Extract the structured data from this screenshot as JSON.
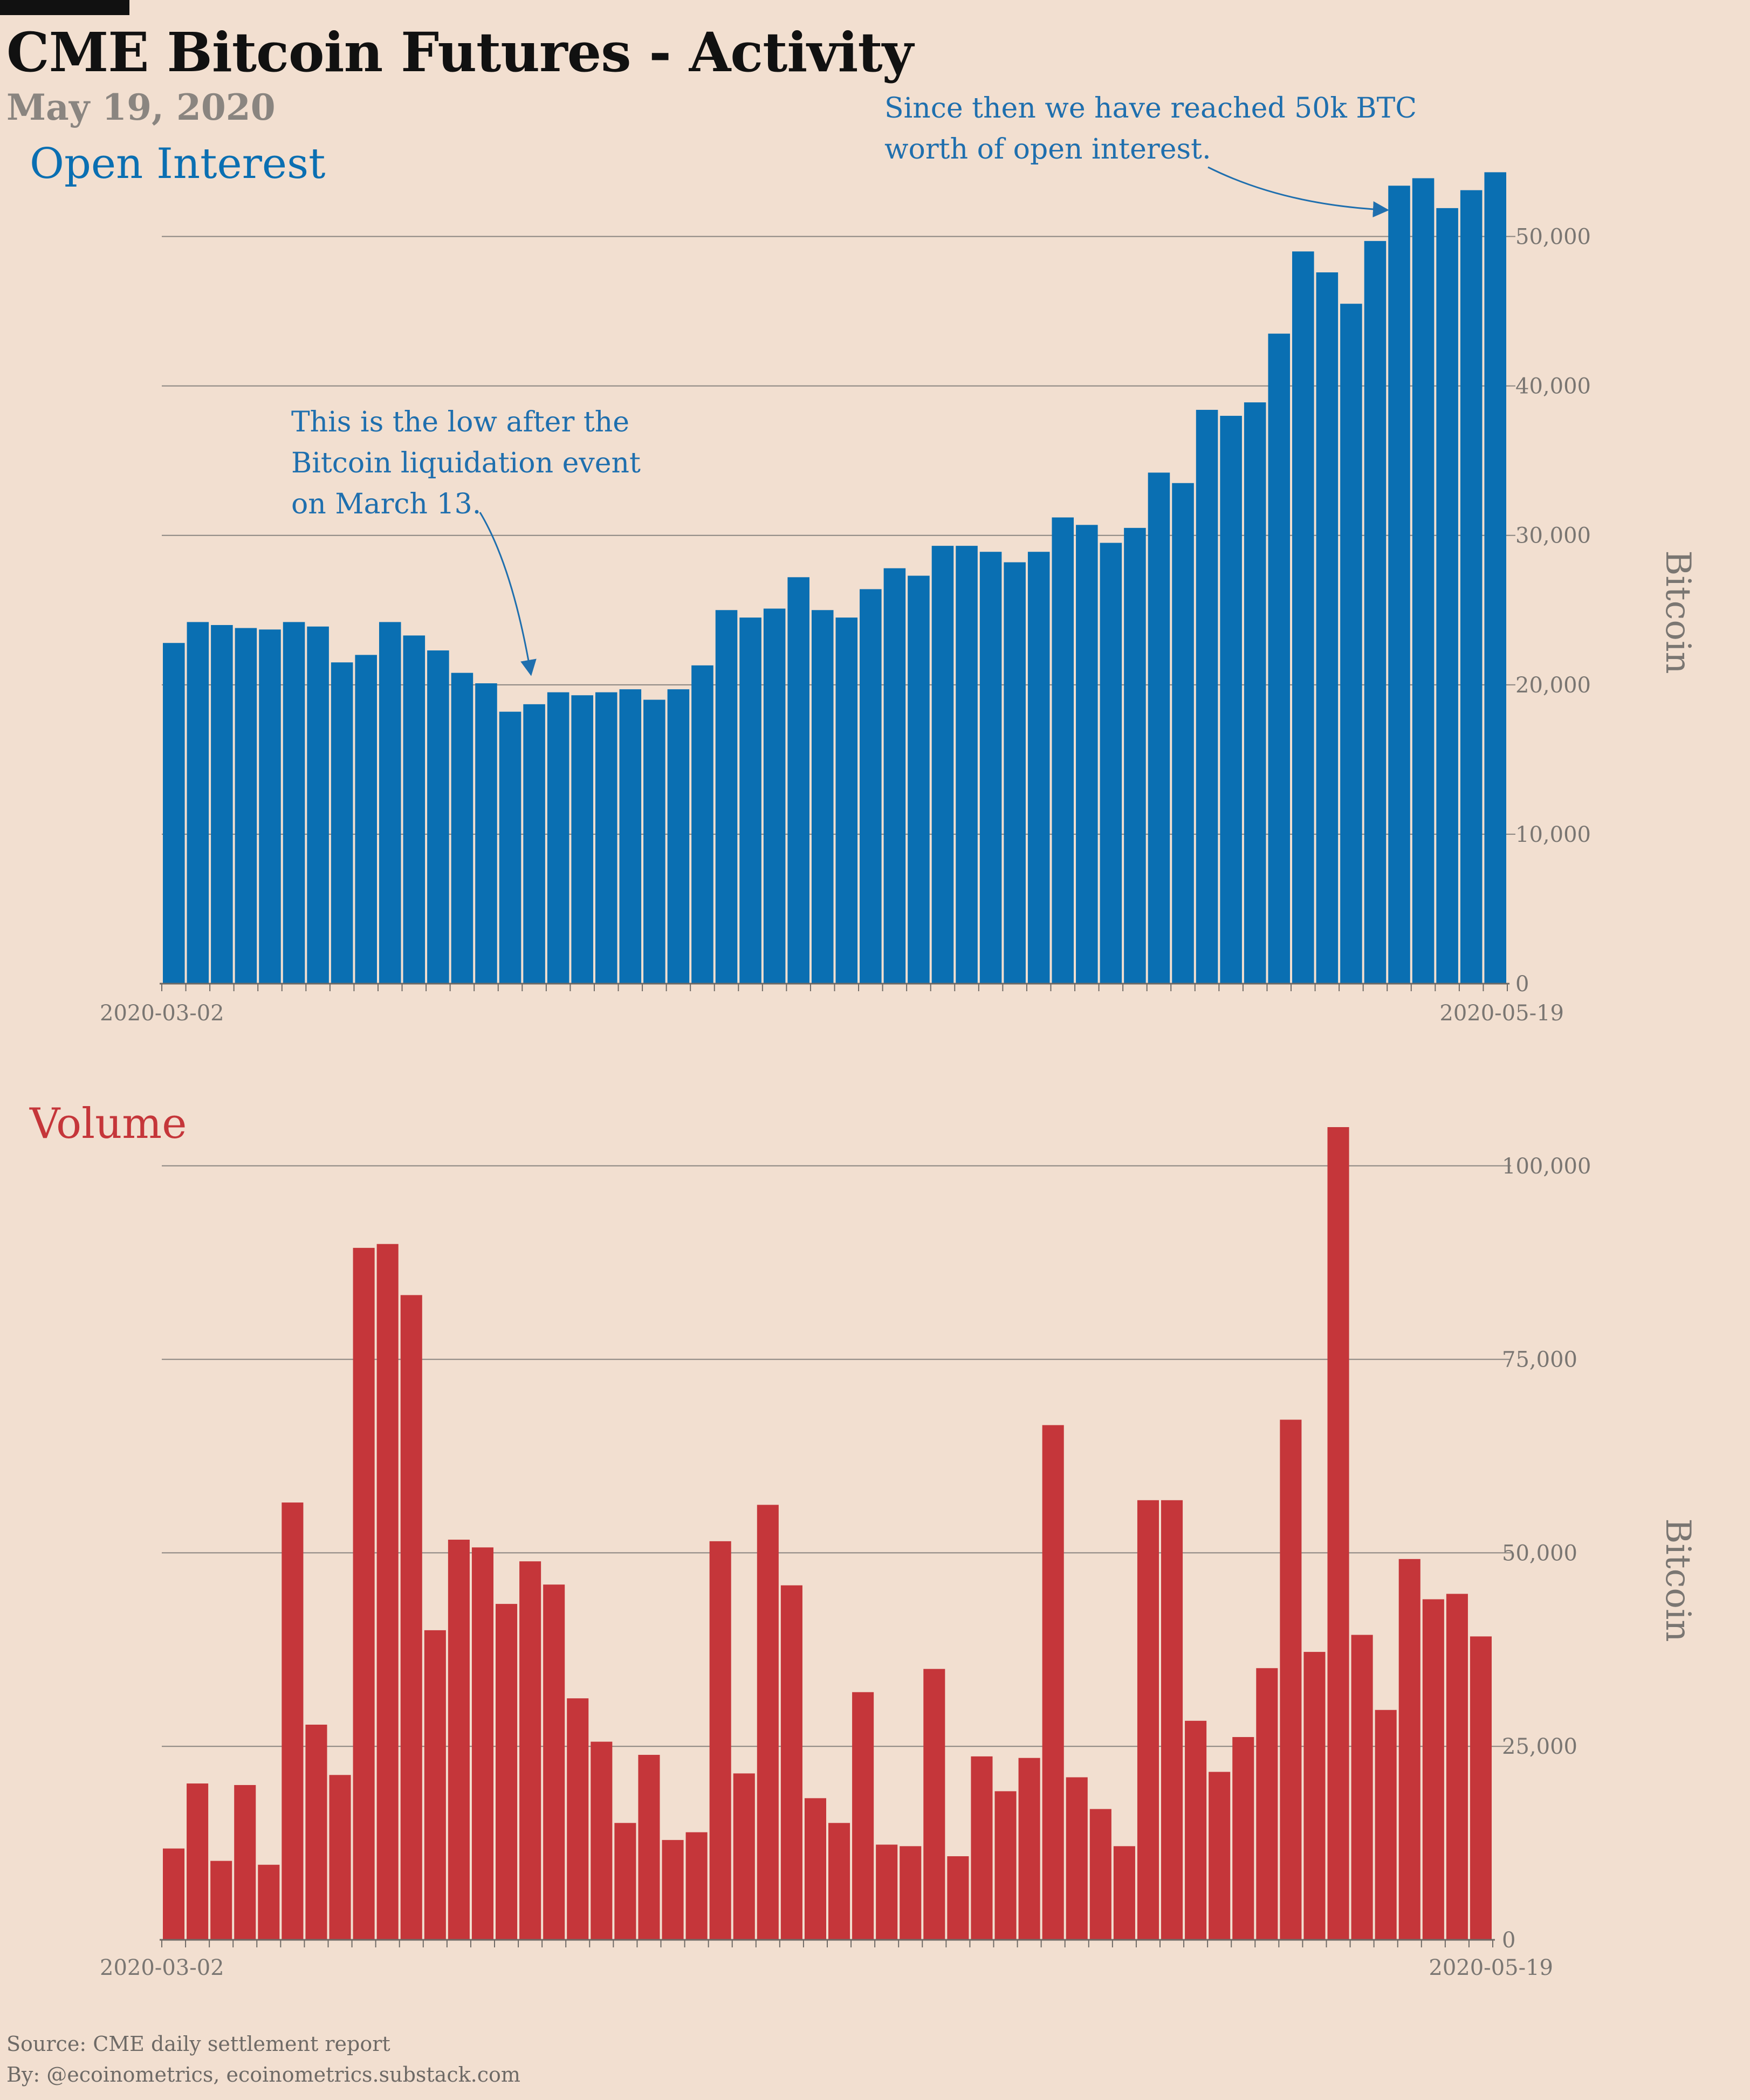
{
  "header": {
    "title": "CME Bitcoin Futures - Activity",
    "date": "May 19, 2020"
  },
  "footer": {
    "source": "Source: CME daily settlement report",
    "by": "By: @ecoinometrics, ecoinometrics.substack.com"
  },
  "colors": {
    "background": "#f2dfd0",
    "open_interest": "#0a6fb2",
    "volume": "#c5363a",
    "annotation": "#1f6fae",
    "grid": "#8a8580"
  },
  "chart_data": [
    {
      "type": "bar",
      "title": "Open Interest",
      "ylabel": "Bitcoin",
      "ylim": [
        0,
        55000
      ],
      "yticks": [
        0,
        10000,
        20000,
        30000,
        40000,
        50000
      ],
      "ytick_labels": [
        "0",
        "10,000",
        "20,000",
        "30,000",
        "40,000",
        "50,000"
      ],
      "x_start_label": "2020-03-02",
      "x_end_label": "2020-05-19",
      "grid": true,
      "y_axis_side": "right",
      "values": [
        22800,
        24200,
        24000,
        23800,
        23700,
        24200,
        23900,
        21500,
        22000,
        24200,
        23300,
        22300,
        20800,
        20100,
        18200,
        18700,
        19500,
        19300,
        19500,
        19700,
        19000,
        19700,
        21300,
        25000,
        24500,
        25100,
        27200,
        25000,
        24500,
        26400,
        27800,
        27300,
        29300,
        29300,
        28900,
        28200,
        28900,
        31200,
        30700,
        29500,
        30500,
        34200,
        33500,
        38400,
        38000,
        38900,
        43500,
        49000,
        47600,
        45500,
        49700,
        53400,
        53900,
        51900,
        53100,
        54300
      ],
      "annotations": [
        {
          "text": [
            "This is the low after the",
            "Bitcoin liquidation event",
            "on March 13."
          ],
          "target_index": 14
        },
        {
          "text": [
            "Since then we have reached 50k BTC",
            "worth of open interest."
          ],
          "target_index": 51
        }
      ]
    },
    {
      "type": "bar",
      "title": "Volume",
      "ylabel": "Bitcoin",
      "ylim": [
        0,
        105000
      ],
      "yticks": [
        0,
        25000,
        50000,
        75000,
        100000
      ],
      "ytick_labels": [
        "0",
        "25,000",
        "50,000",
        "75,000",
        "100,000"
      ],
      "x_start_label": "2020-03-02",
      "x_end_label": "2020-05-19",
      "grid": true,
      "y_axis_side": "right",
      "values": [
        11800,
        20200,
        10200,
        20000,
        9700,
        56500,
        27800,
        21300,
        89400,
        89900,
        83300,
        40000,
        51700,
        50700,
        43400,
        48900,
        45900,
        31200,
        25600,
        15100,
        23900,
        12900,
        13900,
        51500,
        21500,
        56200,
        45800,
        18300,
        15100,
        32000,
        12300,
        12100,
        35000,
        10800,
        23700,
        19200,
        23500,
        66500,
        21000,
        16900,
        12100,
        56800,
        56800,
        28300,
        21700,
        26200,
        35100,
        67200,
        37200,
        105000,
        39400,
        29700,
        49200,
        44000,
        44700,
        39200
      ]
    }
  ]
}
